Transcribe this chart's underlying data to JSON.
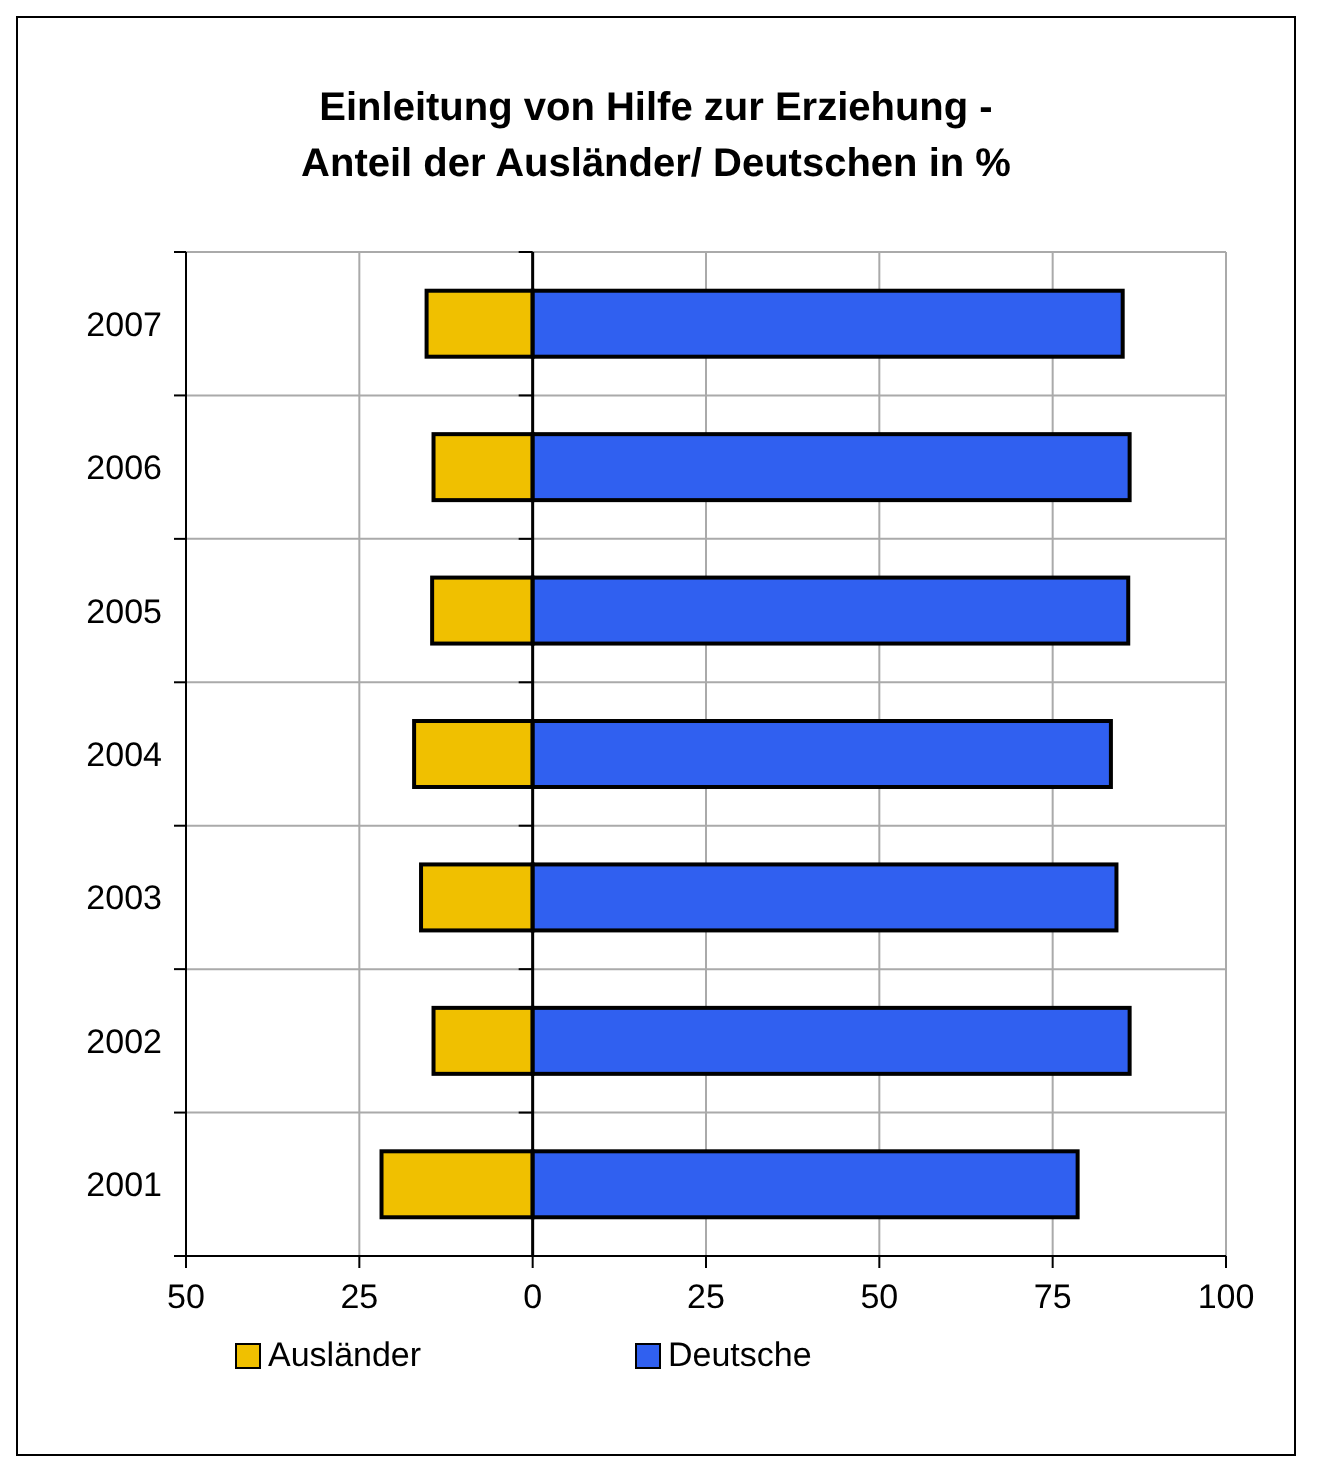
{
  "chart_data": {
    "type": "bar",
    "orientation": "horizontal",
    "stacked": true,
    "title": "Einleitung von Hilfe zur Erziehung -\nAnteil der Ausländer/ Deutschen in %",
    "categories": [
      "2007",
      "2006",
      "2005",
      "2004",
      "2003",
      "2002",
      "2001"
    ],
    "series": [
      {
        "name": "Ausländer",
        "color": "#f0c000",
        "values": [
          -15.3,
          -14.3,
          -14.5,
          -17.1,
          -16.1,
          -14.3,
          -21.8
        ]
      },
      {
        "name": "Deutsche",
        "color": "#3060f0",
        "values": [
          85.1,
          86.1,
          85.9,
          83.4,
          84.2,
          86.1,
          78.6
        ]
      }
    ],
    "xlim": [
      -50,
      100
    ],
    "xticks": [
      {
        "value": -50,
        "label": "50"
      },
      {
        "value": -25,
        "label": "25"
      },
      0,
      25,
      50,
      75,
      100
    ],
    "grid": true,
    "legend": "bottom"
  }
}
